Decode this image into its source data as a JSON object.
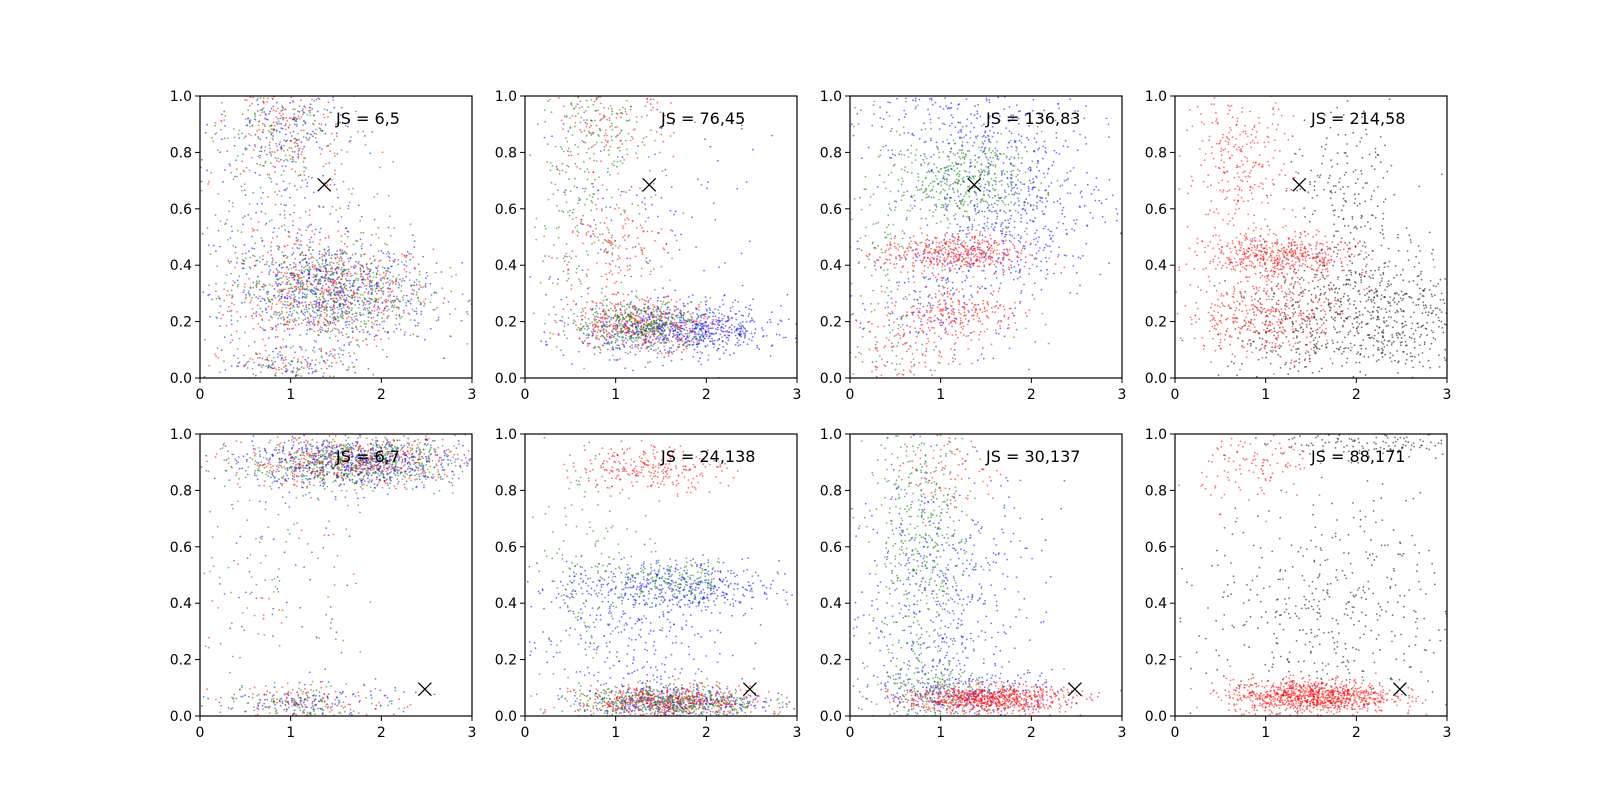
{
  "figure": {
    "background": "#ffffff"
  },
  "chart_data": [
    {
      "type": "scatter",
      "panel": "row1-col1",
      "annotation": "JS = 6,5",
      "xlim": [
        0,
        3
      ],
      "ylim": [
        0,
        1
      ],
      "xticks": [
        "0",
        "1",
        "2",
        "3"
      ],
      "yticks": [
        "0.0",
        "0.2",
        "0.4",
        "0.6",
        "0.8",
        "1.0"
      ],
      "marker": {
        "x": 1.37,
        "y": 0.685,
        "symbol": "x"
      },
      "series": [
        {
          "color": "#ff0000",
          "clusters": [
            {
              "x": 1.45,
              "y": 0.3,
              "sx": 0.55,
              "sy": 0.09,
              "n": 550
            },
            {
              "x": 0.9,
              "y": 0.9,
              "sx": 0.35,
              "sy": 0.1,
              "n": 150
            },
            {
              "x": 0.9,
              "y": 0.55,
              "sx": 0.5,
              "sy": 0.25,
              "n": 150
            },
            {
              "x": 1.0,
              "y": 0.04,
              "sx": 0.4,
              "sy": 0.03,
              "n": 60
            }
          ]
        },
        {
          "color": "#0000ff",
          "clusters": [
            {
              "x": 1.45,
              "y": 0.3,
              "sx": 0.55,
              "sy": 0.09,
              "n": 550
            },
            {
              "x": 0.9,
              "y": 0.9,
              "sx": 0.35,
              "sy": 0.1,
              "n": 150
            },
            {
              "x": 0.9,
              "y": 0.55,
              "sx": 0.5,
              "sy": 0.25,
              "n": 150
            },
            {
              "x": 1.0,
              "y": 0.04,
              "sx": 0.4,
              "sy": 0.03,
              "n": 60
            }
          ]
        },
        {
          "color": "#008000",
          "clusters": [
            {
              "x": 1.45,
              "y": 0.3,
              "sx": 0.55,
              "sy": 0.09,
              "n": 550
            },
            {
              "x": 0.9,
              "y": 0.9,
              "sx": 0.35,
              "sy": 0.1,
              "n": 150
            },
            {
              "x": 0.9,
              "y": 0.55,
              "sx": 0.5,
              "sy": 0.25,
              "n": 150
            },
            {
              "x": 1.0,
              "y": 0.04,
              "sx": 0.4,
              "sy": 0.03,
              "n": 60
            }
          ]
        }
      ]
    },
    {
      "type": "scatter",
      "panel": "row1-col2",
      "annotation": "JS = 76,45",
      "xlim": [
        0,
        3
      ],
      "ylim": [
        0,
        1
      ],
      "xticks": [
        "0",
        "1",
        "2",
        "3"
      ],
      "yticks": [
        "0.0",
        "0.2",
        "0.4",
        "0.6",
        "0.8",
        "1.0"
      ],
      "marker": {
        "x": 1.37,
        "y": 0.685,
        "symbol": "x"
      },
      "series": [
        {
          "color": "#0000ff",
          "clusters": [
            {
              "x": 1.75,
              "y": 0.17,
              "sx": 0.55,
              "sy": 0.045,
              "n": 700
            },
            {
              "x": 1.2,
              "y": 0.5,
              "sx": 0.7,
              "sy": 0.3,
              "n": 150
            }
          ]
        },
        {
          "color": "#ff0000",
          "clusters": [
            {
              "x": 1.3,
              "y": 0.19,
              "sx": 0.4,
              "sy": 0.045,
              "n": 400
            },
            {
              "x": 0.9,
              "y": 0.45,
              "sx": 0.35,
              "sy": 0.1,
              "n": 160
            },
            {
              "x": 0.9,
              "y": 0.88,
              "sx": 0.35,
              "sy": 0.08,
              "n": 120
            }
          ]
        },
        {
          "color": "#008000",
          "clusters": [
            {
              "x": 1.3,
              "y": 0.19,
              "sx": 0.4,
              "sy": 0.045,
              "n": 400
            },
            {
              "x": 0.7,
              "y": 0.6,
              "sx": 0.35,
              "sy": 0.25,
              "n": 220
            },
            {
              "x": 0.8,
              "y": 0.9,
              "sx": 0.3,
              "sy": 0.08,
              "n": 100
            }
          ]
        }
      ]
    },
    {
      "type": "scatter",
      "panel": "row1-col3",
      "annotation": "JS = 136,83",
      "xlim": [
        0,
        3
      ],
      "ylim": [
        0,
        1
      ],
      "xticks": [
        "0",
        "1",
        "2",
        "3"
      ],
      "yticks": [
        "0.0",
        "0.2",
        "0.4",
        "0.6",
        "0.8",
        "1.0"
      ],
      "marker": {
        "x": 1.37,
        "y": 0.685,
        "symbol": "x"
      },
      "series": [
        {
          "color": "#0000ff",
          "clusters": [
            {
              "x": 1.8,
              "y": 0.6,
              "sx": 0.55,
              "sy": 0.15,
              "n": 500
            },
            {
              "x": 1.3,
              "y": 0.9,
              "sx": 0.6,
              "sy": 0.08,
              "n": 200
            },
            {
              "x": 1.0,
              "y": 0.3,
              "sx": 0.5,
              "sy": 0.15,
              "n": 200
            }
          ]
        },
        {
          "color": "#008000",
          "clusters": [
            {
              "x": 1.3,
              "y": 0.7,
              "sx": 0.4,
              "sy": 0.08,
              "n": 450
            },
            {
              "x": 0.5,
              "y": 0.45,
              "sx": 0.3,
              "sy": 0.3,
              "n": 200
            }
          ]
        },
        {
          "color": "#ff0000",
          "clusters": [
            {
              "x": 1.15,
              "y": 0.44,
              "sx": 0.4,
              "sy": 0.035,
              "n": 450
            },
            {
              "x": 1.2,
              "y": 0.23,
              "sx": 0.35,
              "sy": 0.05,
              "n": 250
            },
            {
              "x": 0.6,
              "y": 0.1,
              "sx": 0.3,
              "sy": 0.08,
              "n": 100
            }
          ]
        }
      ]
    },
    {
      "type": "scatter",
      "panel": "row1-col4",
      "annotation": "JS = 214,58",
      "xlim": [
        0,
        3
      ],
      "ylim": [
        0,
        1
      ],
      "xticks": [
        "0",
        "1",
        "2",
        "3"
      ],
      "yticks": [
        "0.0",
        "0.2",
        "0.4",
        "0.6",
        "0.8",
        "1.0"
      ],
      "marker": {
        "x": 1.37,
        "y": 0.685,
        "symbol": "x"
      },
      "series": [
        {
          "color": "#000000",
          "clusters": [
            {
              "x": 2.2,
              "y": 0.22,
              "sx": 0.6,
              "sy": 0.12,
              "n": 700
            },
            {
              "x": 1.9,
              "y": 0.6,
              "sx": 0.35,
              "sy": 0.2,
              "n": 250
            },
            {
              "x": 1.2,
              "y": 0.15,
              "sx": 0.4,
              "sy": 0.1,
              "n": 150
            }
          ]
        },
        {
          "color": "#ff0000",
          "clusters": [
            {
              "x": 1.15,
              "y": 0.43,
              "sx": 0.4,
              "sy": 0.04,
              "n": 500
            },
            {
              "x": 1.0,
              "y": 0.22,
              "sx": 0.45,
              "sy": 0.07,
              "n": 400
            },
            {
              "x": 0.7,
              "y": 0.75,
              "sx": 0.3,
              "sy": 0.15,
              "n": 300
            }
          ]
        }
      ]
    },
    {
      "type": "scatter",
      "panel": "row2-col1",
      "annotation": "JS = 6,7",
      "xlim": [
        0,
        3
      ],
      "ylim": [
        0,
        1
      ],
      "xticks": [
        "0",
        "1",
        "2",
        "3"
      ],
      "yticks": [
        "0.0",
        "0.2",
        "0.4",
        "0.6",
        "0.8",
        "1.0"
      ],
      "marker": {
        "x": 2.48,
        "y": 0.095,
        "symbol": "x"
      },
      "series": [
        {
          "color": "#ff0000",
          "clusters": [
            {
              "x": 1.7,
              "y": 0.9,
              "sx": 0.6,
              "sy": 0.045,
              "n": 550
            },
            {
              "x": 1.2,
              "y": 0.05,
              "sx": 0.5,
              "sy": 0.03,
              "n": 120
            },
            {
              "x": 0.8,
              "y": 0.55,
              "sx": 0.5,
              "sy": 0.25,
              "n": 60
            }
          ]
        },
        {
          "color": "#0000ff",
          "clusters": [
            {
              "x": 1.7,
              "y": 0.9,
              "sx": 0.6,
              "sy": 0.045,
              "n": 550
            },
            {
              "x": 1.2,
              "y": 0.05,
              "sx": 0.5,
              "sy": 0.03,
              "n": 120
            },
            {
              "x": 0.8,
              "y": 0.55,
              "sx": 0.5,
              "sy": 0.25,
              "n": 60
            }
          ]
        },
        {
          "color": "#008000",
          "clusters": [
            {
              "x": 1.7,
              "y": 0.9,
              "sx": 0.6,
              "sy": 0.045,
              "n": 550
            },
            {
              "x": 1.2,
              "y": 0.05,
              "sx": 0.5,
              "sy": 0.03,
              "n": 120
            },
            {
              "x": 0.8,
              "y": 0.55,
              "sx": 0.5,
              "sy": 0.25,
              "n": 60
            }
          ]
        }
      ]
    },
    {
      "type": "scatter",
      "panel": "row2-col2",
      "annotation": "JS = 24,138",
      "xlim": [
        0,
        3
      ],
      "ylim": [
        0,
        1
      ],
      "xticks": [
        "0",
        "1",
        "2",
        "3"
      ],
      "yticks": [
        "0.0",
        "0.2",
        "0.4",
        "0.6",
        "0.8",
        "1.0"
      ],
      "marker": {
        "x": 2.48,
        "y": 0.095,
        "symbol": "x"
      },
      "series": [
        {
          "color": "#0000ff",
          "clusters": [
            {
              "x": 1.6,
              "y": 0.45,
              "sx": 0.6,
              "sy": 0.05,
              "n": 450
            },
            {
              "x": 1.6,
              "y": 0.05,
              "sx": 0.5,
              "sy": 0.03,
              "n": 350
            },
            {
              "x": 1.1,
              "y": 0.25,
              "sx": 0.6,
              "sy": 0.1,
              "n": 200
            }
          ]
        },
        {
          "color": "#008000",
          "clusters": [
            {
              "x": 1.6,
              "y": 0.05,
              "sx": 0.5,
              "sy": 0.03,
              "n": 500
            },
            {
              "x": 1.6,
              "y": 0.48,
              "sx": 0.4,
              "sy": 0.04,
              "n": 200
            },
            {
              "x": 0.7,
              "y": 0.5,
              "sx": 0.3,
              "sy": 0.25,
              "n": 200
            }
          ]
        },
        {
          "color": "#ff0000",
          "clusters": [
            {
              "x": 1.6,
              "y": 0.05,
              "sx": 0.5,
              "sy": 0.03,
              "n": 500
            },
            {
              "x": 1.4,
              "y": 0.88,
              "sx": 0.4,
              "sy": 0.04,
              "n": 250
            }
          ]
        }
      ]
    },
    {
      "type": "scatter",
      "panel": "row2-col3",
      "annotation": "JS = 30,137",
      "xlim": [
        0,
        3
      ],
      "ylim": [
        0,
        1
      ],
      "xticks": [
        "0",
        "1",
        "2",
        "3"
      ],
      "yticks": [
        "0.0",
        "0.2",
        "0.4",
        "0.6",
        "0.8",
        "1.0"
      ],
      "marker": {
        "x": 2.48,
        "y": 0.095,
        "symbol": "x"
      },
      "series": [
        {
          "color": "#0000ff",
          "clusters": [
            {
              "x": 1.0,
              "y": 0.4,
              "sx": 0.55,
              "sy": 0.25,
              "n": 500
            },
            {
              "x": 1.3,
              "y": 0.08,
              "sx": 0.5,
              "sy": 0.04,
              "n": 250
            }
          ]
        },
        {
          "color": "#008000",
          "clusters": [
            {
              "x": 0.8,
              "y": 0.6,
              "sx": 0.3,
              "sy": 0.25,
              "n": 500
            },
            {
              "x": 0.9,
              "y": 0.1,
              "sx": 0.3,
              "sy": 0.06,
              "n": 200
            }
          ]
        },
        {
          "color": "#ff0000",
          "clusters": [
            {
              "x": 1.5,
              "y": 0.06,
              "sx": 0.45,
              "sy": 0.025,
              "n": 800
            },
            {
              "x": 1.1,
              "y": 0.88,
              "sx": 0.3,
              "sy": 0.08,
              "n": 80
            }
          ]
        }
      ]
    },
    {
      "type": "scatter",
      "panel": "row2-col4",
      "annotation": "JS = 88,171",
      "xlim": [
        0,
        3
      ],
      "ylim": [
        0,
        1
      ],
      "xticks": [
        "0",
        "1",
        "2",
        "3"
      ],
      "yticks": [
        "0.0",
        "0.2",
        "0.4",
        "0.6",
        "0.8",
        "1.0"
      ],
      "marker": {
        "x": 2.48,
        "y": 0.095,
        "symbol": "x"
      },
      "series": [
        {
          "color": "#000000",
          "clusters": [
            {
              "x": 1.7,
              "y": 0.35,
              "sx": 0.7,
              "sy": 0.2,
              "n": 450
            },
            {
              "x": 2.2,
              "y": 0.97,
              "sx": 0.5,
              "sy": 0.03,
              "n": 150
            }
          ]
        },
        {
          "color": "#ff0000",
          "clusters": [
            {
              "x": 1.5,
              "y": 0.07,
              "sx": 0.45,
              "sy": 0.03,
              "n": 1000
            },
            {
              "x": 0.9,
              "y": 0.88,
              "sx": 0.3,
              "sy": 0.07,
              "n": 120
            }
          ]
        }
      ]
    }
  ]
}
